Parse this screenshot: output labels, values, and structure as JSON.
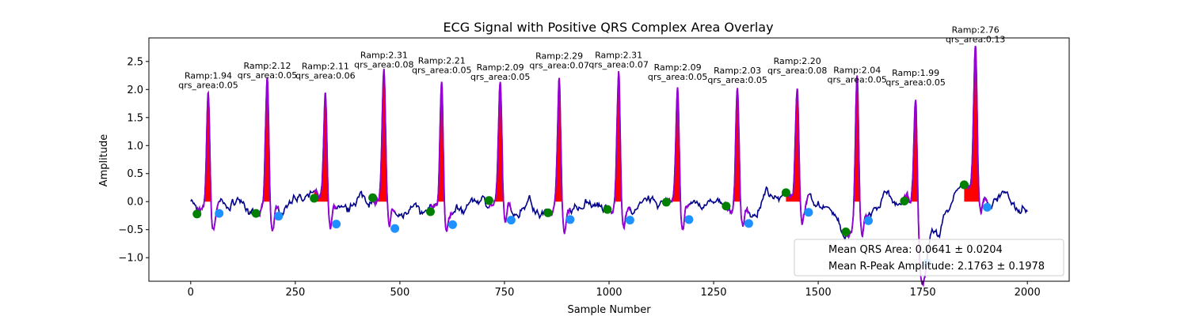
{
  "chart_data": {
    "type": "line",
    "title": "ECG Signal with Positive QRS Complex Area Overlay",
    "xlabel": "Sample Number",
    "ylabel": "Amplitude",
    "xlim": [
      -100,
      2100
    ],
    "ylim": [
      -1.42,
      2.92
    ],
    "xticks": [
      0,
      250,
      500,
      750,
      1000,
      1250,
      1500,
      1750,
      2000
    ],
    "yticks": [
      -1.0,
      -0.5,
      0.0,
      0.5,
      1.0,
      1.5,
      2.0,
      2.5
    ],
    "grid": false,
    "legend": {
      "placement": "lower right",
      "entries": [
        "Mean QRS Area: 0.0641 ± 0.0204",
        "Mean R-Peak Amplitude: 2.1763 ± 0.1978"
      ]
    },
    "colors": {
      "signal": "#00008b",
      "segment": "#9400d3",
      "area_fill": "#ff0000",
      "onset_marker": "#008000",
      "offset_marker": "#1e90ff"
    },
    "beats": [
      {
        "r_x": 42,
        "r_amp": 1.94,
        "qrs_area": 0.05,
        "onset": [
          15,
          -0.22
        ],
        "offset": [
          68,
          -0.21
        ],
        "ramp_label": "Ramp:1.94",
        "area_label": "qrs_area:0.05"
      },
      {
        "r_x": 183,
        "r_amp": 2.12,
        "qrs_area": 0.05,
        "onset": [
          156,
          -0.21
        ],
        "offset": [
          210,
          -0.26
        ],
        "ramp_label": "Ramp:2.12",
        "area_label": "qrs_area:0.05"
      },
      {
        "r_x": 322,
        "r_amp": 2.11,
        "qrs_area": 0.06,
        "onset": [
          295,
          0.06
        ],
        "offset": [
          348,
          -0.4
        ],
        "ramp_label": "Ramp:2.11",
        "area_label": "qrs_area:0.06"
      },
      {
        "r_x": 462,
        "r_amp": 2.31,
        "qrs_area": 0.08,
        "onset": [
          435,
          0.07
        ],
        "offset": [
          488,
          -0.48
        ],
        "ramp_label": "Ramp:2.31",
        "area_label": "qrs_area:0.08"
      },
      {
        "r_x": 600,
        "r_amp": 2.21,
        "qrs_area": 0.05,
        "onset": [
          573,
          -0.18
        ],
        "offset": [
          626,
          -0.41
        ],
        "ramp_label": "Ramp:2.21",
        "area_label": "qrs_area:0.05"
      },
      {
        "r_x": 740,
        "r_amp": 2.09,
        "qrs_area": 0.05,
        "onset": [
          713,
          0.02
        ],
        "offset": [
          766,
          -0.33
        ],
        "ramp_label": "Ramp:2.09",
        "area_label": "qrs_area:0.05"
      },
      {
        "r_x": 881,
        "r_amp": 2.29,
        "qrs_area": 0.07,
        "onset": [
          854,
          -0.2
        ],
        "offset": [
          907,
          -0.32
        ],
        "ramp_label": "Ramp:2.29",
        "area_label": "qrs_area:0.07"
      },
      {
        "r_x": 1023,
        "r_amp": 2.31,
        "qrs_area": 0.07,
        "onset": [
          996,
          -0.14
        ],
        "offset": [
          1050,
          -0.33
        ],
        "ramp_label": "Ramp:2.31",
        "area_label": "qrs_area:0.07"
      },
      {
        "r_x": 1164,
        "r_amp": 2.09,
        "qrs_area": 0.05,
        "onset": [
          1137,
          -0.01
        ],
        "offset": [
          1191,
          -0.32
        ],
        "ramp_label": "Ramp:2.09",
        "area_label": "qrs_area:0.05"
      },
      {
        "r_x": 1307,
        "r_amp": 2.03,
        "qrs_area": 0.05,
        "onset": [
          1280,
          -0.08
        ],
        "offset": [
          1334,
          -0.39
        ],
        "ramp_label": "Ramp:2.03",
        "area_label": "qrs_area:0.05"
      },
      {
        "r_x": 1450,
        "r_amp": 2.2,
        "qrs_area": 0.08,
        "onset": [
          1423,
          0.16
        ],
        "offset": [
          1477,
          -0.19
        ],
        "ramp_label": "Ramp:2.20",
        "area_label": "qrs_area:0.08"
      },
      {
        "r_x": 1593,
        "r_amp": 2.04,
        "qrs_area": 0.05,
        "onset": [
          1566,
          -0.54
        ],
        "offset": [
          1620,
          -0.34
        ],
        "ramp_label": "Ramp:2.04",
        "area_label": "qrs_area:0.05"
      },
      {
        "r_x": 1733,
        "r_amp": 1.99,
        "qrs_area": 0.05,
        "onset": [
          1706,
          0.01
        ],
        "offset": [
          1760,
          -1.1
        ],
        "ramp_label": "Ramp:1.99",
        "area_label": "qrs_area:0.05"
      },
      {
        "r_x": 1876,
        "r_amp": 2.76,
        "qrs_area": 0.13,
        "onset": [
          1849,
          0.3
        ],
        "offset": [
          1904,
          -0.1
        ],
        "ramp_label": "Ramp:2.76",
        "area_label": "qrs_area:0.13"
      }
    ]
  }
}
